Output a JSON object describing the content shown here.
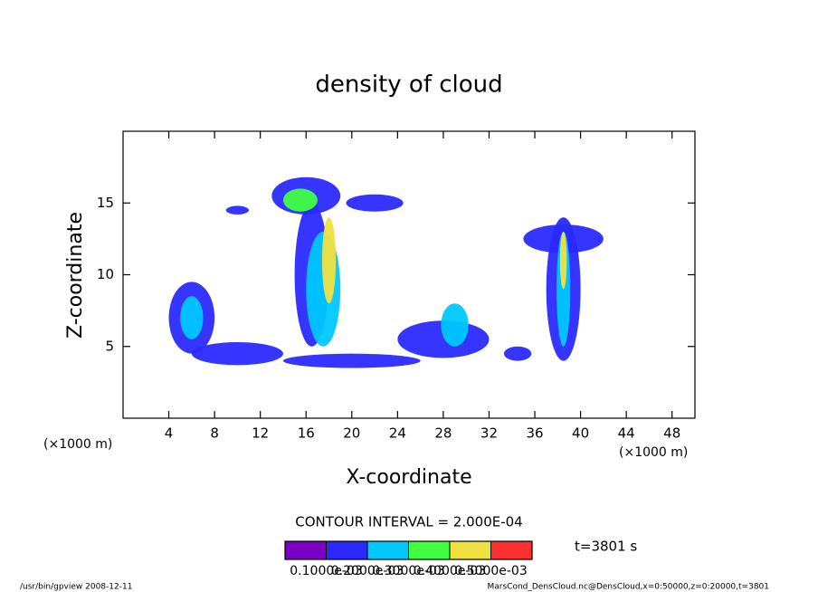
{
  "chart_data": {
    "type": "contour",
    "title": "density of cloud",
    "x_label": "X-coordinate",
    "y_label": "Z-coordinate",
    "x_unit_left": "(×1000 m)",
    "x_unit_right": "(×1000 m)",
    "xlim": [
      0,
      50
    ],
    "xticks": [
      4,
      8,
      12,
      16,
      20,
      24,
      28,
      32,
      36,
      40,
      44,
      48
    ],
    "ylim": [
      0,
      20
    ],
    "yticks": [
      5,
      10,
      15
    ],
    "contour_interval": "CONTOUR INTERVAL = 2.000E-04",
    "time_label": "t=3801 s",
    "levels": [
      0,
      0.0001,
      0.0002,
      0.0003,
      0.0004,
      0.0005,
      0.0006
    ],
    "level_colors": [
      "#7a00c4",
      "#2a2aff",
      "#00c8ff",
      "#40ff40",
      "#f0e040",
      "#ff3030"
    ],
    "colorbar_ticks": [
      {
        "value": 0.0001,
        "label": "0.1000e-03"
      },
      {
        "value": 0.0002,
        "label": "0.2000e-03"
      },
      {
        "value": 0.0003,
        "label": "0.3000e-03"
      },
      {
        "value": 0.0004,
        "label": "0.4000e-03"
      },
      {
        "value": 0.0005,
        "label": "0.5000e-03"
      }
    ],
    "regions": [
      {
        "x": 6,
        "z": 7,
        "rx": 2,
        "rz": 2.5,
        "value": 0.00015
      },
      {
        "x": 10,
        "z": 4.5,
        "rx": 4,
        "rz": 0.8,
        "value": 0.00015
      },
      {
        "x": 20,
        "z": 4,
        "rx": 6,
        "rz": 0.5,
        "value": 0.00015
      },
      {
        "x": 16,
        "z": 15.5,
        "rx": 3,
        "rz": 1.3,
        "value": 0.00015
      },
      {
        "x": 16.5,
        "z": 10,
        "rx": 1.5,
        "rz": 5,
        "value": 0.00015
      },
      {
        "x": 22,
        "z": 15,
        "rx": 2.5,
        "rz": 0.6,
        "value": 0.00015
      },
      {
        "x": 10,
        "z": 14.5,
        "rx": 1,
        "rz": 0.3,
        "value": 0.00015
      },
      {
        "x": 28,
        "z": 5.5,
        "rx": 4,
        "rz": 1.3,
        "value": 0.00015
      },
      {
        "x": 34.5,
        "z": 4.5,
        "rx": 1.2,
        "rz": 0.5,
        "value": 0.00015
      },
      {
        "x": 38.5,
        "z": 9,
        "rx": 1.5,
        "rz": 5,
        "value": 0.00015
      },
      {
        "x": 38.5,
        "z": 12.5,
        "rx": 3.5,
        "rz": 1,
        "value": 0.00015
      },
      {
        "x": 6,
        "z": 7,
        "rx": 1,
        "rz": 1.5,
        "value": 0.00025
      },
      {
        "x": 17.5,
        "z": 9,
        "rx": 1.5,
        "rz": 4,
        "value": 0.00025
      },
      {
        "x": 29,
        "z": 6.5,
        "rx": 1.2,
        "rz": 1.5,
        "value": 0.00025
      },
      {
        "x": 38.5,
        "z": 9,
        "rx": 0.6,
        "rz": 4,
        "value": 0.00025
      },
      {
        "x": 15.5,
        "z": 15.2,
        "rx": 1.5,
        "rz": 0.8,
        "value": 0.00035
      },
      {
        "x": 18,
        "z": 11,
        "rx": 0.6,
        "rz": 3,
        "value": 0.00045
      },
      {
        "x": 38.5,
        "z": 11,
        "rx": 0.3,
        "rz": 2,
        "value": 0.00045
      }
    ],
    "footer_left": "/usr/bin/gpview  2008-12-11",
    "footer_right": "MarsCond_DensCloud.nc@DensCloud,x=0:50000,z=0:20000,t=3801"
  }
}
